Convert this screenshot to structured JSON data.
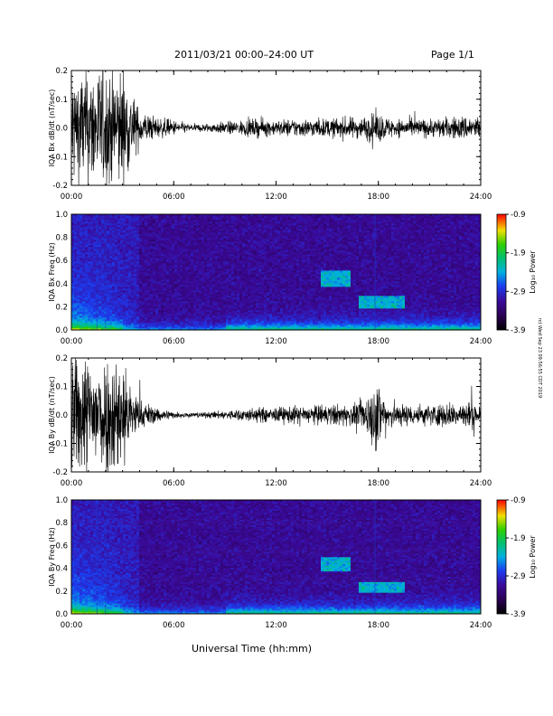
{
  "header": {
    "date_range": "2011/03/21  00:00–24:00 UT",
    "page": "Page 1/1"
  },
  "footer": {
    "xaxis_title": "Universal Time (hh:mm)",
    "side_stamp": "rct Wed Sep 23 09:56:55 CDT 2019"
  },
  "chart_data": [
    {
      "id": "bx-dbdt",
      "type": "line",
      "ylabel": "IQA Bx dB/dt (nT/sec)",
      "ylim": [
        -0.2,
        0.2
      ],
      "yticks": [
        "-0.2",
        "-0.1",
        "0.0",
        "0.1",
        "0.2"
      ],
      "xlim": [
        0,
        24
      ],
      "xticks": [
        "00:00",
        "06:00",
        "12:00",
        "18:00",
        "24:00"
      ],
      "color": "#000000",
      "series": [
        {
          "x": [
            0,
            0.5,
            1,
            1.5,
            2,
            2.5,
            3,
            3.5,
            4,
            5,
            6,
            7,
            8,
            9,
            10,
            11,
            12,
            13,
            14,
            15,
            16,
            17,
            17.5,
            18,
            18.5,
            19,
            20,
            21,
            22,
            23,
            24
          ],
          "amp": [
            0.2,
            0.2,
            0.2,
            0.2,
            0.2,
            0.2,
            0.2,
            0.12,
            0.06,
            0.035,
            0.025,
            0.012,
            0.015,
            0.02,
            0.025,
            0.03,
            0.025,
            0.03,
            0.03,
            0.03,
            0.035,
            0.035,
            0.045,
            0.05,
            0.035,
            0.03,
            0.03,
            0.03,
            0.035,
            0.04,
            0.04
          ]
        }
      ]
    },
    {
      "id": "bx-spectrogram",
      "type": "heatmap",
      "ylabel": "IQA Bx Freq (Hz)",
      "ylim": [
        0.0,
        1.0
      ],
      "yticks": [
        "0.0",
        "0.2",
        "0.4",
        "0.6",
        "0.8",
        "1.0"
      ],
      "xlim": [
        0,
        24
      ],
      "xticks": [
        "00:00",
        "06:00",
        "12:00",
        "18:00",
        "24:00"
      ],
      "colorbar": {
        "label": "Log₁₀ Power",
        "ticks": [
          "-0.9",
          "-1.9",
          "-2.9",
          "-3.9"
        ],
        "range": [
          -3.9,
          -0.9
        ]
      },
      "features": [
        {
          "t": [
            14.6,
            16.4
          ],
          "f": [
            0.38,
            0.52
          ]
        },
        {
          "t": [
            16.8,
            19.5
          ],
          "f": [
            0.18,
            0.3
          ]
        }
      ]
    },
    {
      "id": "by-dbdt",
      "type": "line",
      "ylabel": "IQA By dB/dt (nT/sec)",
      "ylim": [
        -0.2,
        0.2
      ],
      "yticks": [
        "-0.2",
        "-0.1",
        "0.0",
        "0.1",
        "0.2"
      ],
      "xlim": [
        0,
        24
      ],
      "xticks": [
        "00:00",
        "06:00",
        "12:00",
        "18:00",
        "24:00"
      ],
      "color": "#000000",
      "series": [
        {
          "x": [
            0,
            0.5,
            1,
            1.5,
            2,
            2.5,
            3,
            3.5,
            4,
            5,
            6,
            7,
            8,
            9,
            10,
            11,
            12,
            13,
            14,
            15,
            16,
            17,
            17.5,
            18,
            18.5,
            19,
            20,
            21,
            22,
            23,
            24
          ],
          "amp": [
            0.2,
            0.2,
            0.2,
            0.2,
            0.2,
            0.2,
            0.2,
            0.1,
            0.05,
            0.025,
            0.012,
            0.008,
            0.01,
            0.015,
            0.02,
            0.025,
            0.025,
            0.03,
            0.03,
            0.035,
            0.035,
            0.04,
            0.09,
            0.12,
            0.05,
            0.04,
            0.035,
            0.035,
            0.04,
            0.045,
            0.045
          ]
        }
      ]
    },
    {
      "id": "by-spectrogram",
      "type": "heatmap",
      "ylabel": "IQA By Freq (Hz)",
      "ylim": [
        0.0,
        1.0
      ],
      "yticks": [
        "0.0",
        "0.2",
        "0.4",
        "0.6",
        "0.8",
        "1.0"
      ],
      "xlim": [
        0,
        24
      ],
      "xticks": [
        "00:00",
        "06:00",
        "12:00",
        "18:00",
        "24:00"
      ],
      "colorbar": {
        "label": "Log₁₀ Power",
        "ticks": [
          "-0.9",
          "-1.9",
          "-2.9",
          "-3.9"
        ],
        "range": [
          -3.9,
          -0.9
        ]
      },
      "features": [
        {
          "t": [
            14.6,
            16.4
          ],
          "f": [
            0.38,
            0.5
          ]
        },
        {
          "t": [
            16.8,
            19.5
          ],
          "f": [
            0.18,
            0.28
          ]
        }
      ]
    }
  ]
}
